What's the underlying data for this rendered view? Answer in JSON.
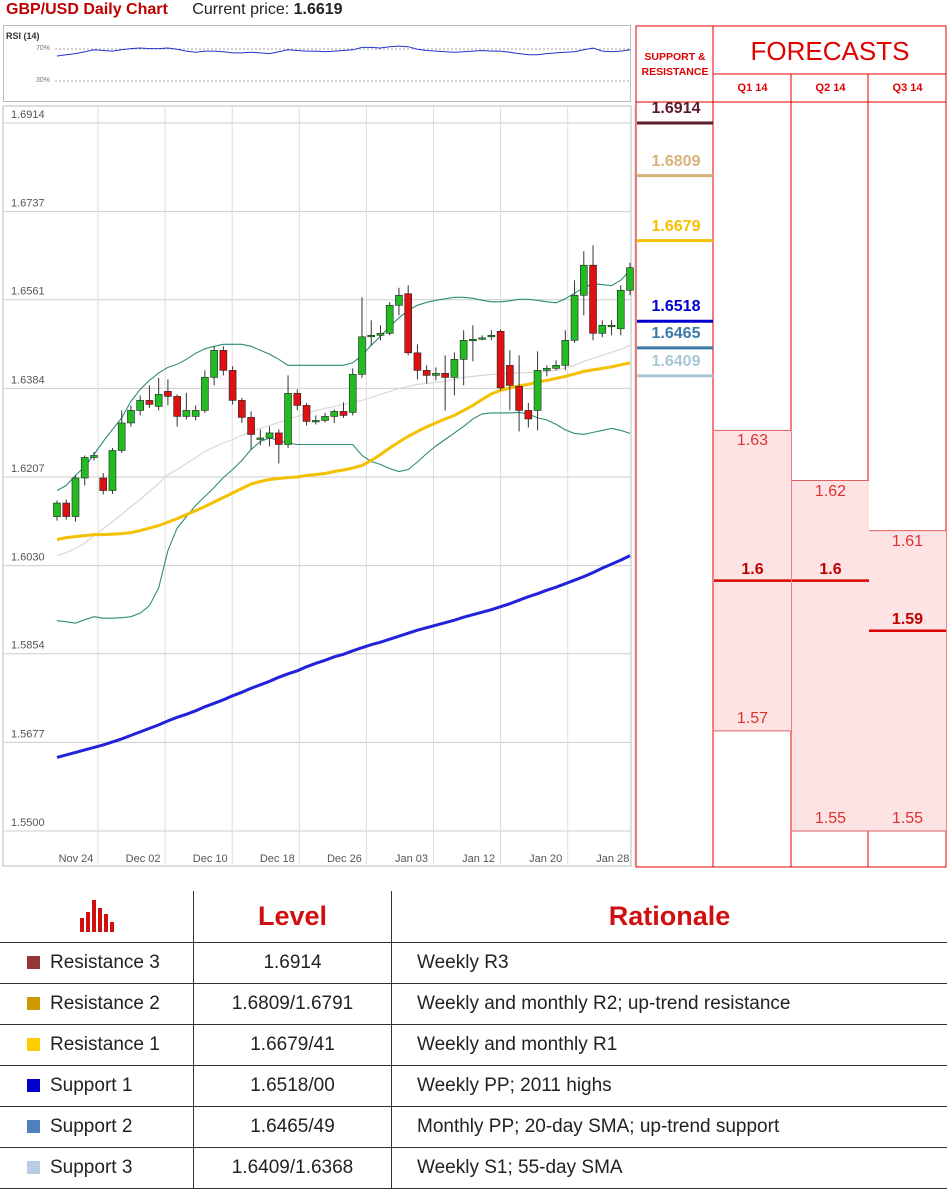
{
  "header": {
    "title": "GBP/USD Daily Chart",
    "price_label": "Current price:",
    "price_value": "1.6619"
  },
  "rsi": {
    "title": "RSI (14)",
    "levels": [
      "70%",
      "30%"
    ]
  },
  "chart_data": {
    "type": "candlestick",
    "title": "GBP/USD Daily Chart",
    "y_ticks": [
      "1.6914",
      "1.6737",
      "1.6561",
      "1.6384",
      "1.6207",
      "1.6030",
      "1.5854",
      "1.5677",
      "1.5500"
    ],
    "ylim": [
      1.55,
      1.6914
    ],
    "x_ticks": [
      "Nov 24",
      "Dec 02",
      "Dec 10",
      "Dec 18",
      "Dec 26",
      "Jan 03",
      "Jan 12",
      "Jan 20",
      "Jan 28"
    ],
    "grid": true,
    "candles": [
      [
        1.6118,
        1.6145,
        1.615,
        1.611
      ],
      [
        1.6145,
        1.6118,
        1.6152,
        1.6112
      ],
      [
        1.6118,
        1.6195,
        1.62,
        1.6108
      ],
      [
        1.6195,
        1.6236,
        1.624,
        1.618
      ],
      [
        1.6236,
        1.624,
        1.6247,
        1.623
      ],
      [
        1.6195,
        1.617,
        1.6205,
        1.6162
      ],
      [
        1.617,
        1.625,
        1.6255,
        1.6163
      ],
      [
        1.625,
        1.6305,
        1.633,
        1.6245
      ],
      [
        1.6305,
        1.633,
        1.634,
        1.6298
      ],
      [
        1.633,
        1.635,
        1.636,
        1.632
      ],
      [
        1.635,
        1.6342,
        1.638,
        1.6335
      ],
      [
        1.6338,
        1.6362,
        1.6395,
        1.633
      ],
      [
        1.6368,
        1.6358,
        1.6392,
        1.634
      ],
      [
        1.6358,
        1.6318,
        1.6362,
        1.6298
      ],
      [
        1.6318,
        1.633,
        1.6365,
        1.6312
      ],
      [
        1.6318,
        1.633,
        1.634,
        1.631
      ],
      [
        1.633,
        1.6396,
        1.641,
        1.6325
      ],
      [
        1.6396,
        1.645,
        1.6458,
        1.638
      ],
      [
        1.645,
        1.641,
        1.6458,
        1.64
      ],
      [
        1.641,
        1.635,
        1.6418,
        1.6342
      ],
      [
        1.635,
        1.6316,
        1.6355,
        1.6305
      ],
      [
        1.6316,
        1.6282,
        1.6328,
        1.6252
      ],
      [
        1.6275,
        1.6275,
        1.6292,
        1.626
      ],
      [
        1.6275,
        1.6285,
        1.6298,
        1.6258
      ],
      [
        1.6285,
        1.6262,
        1.6292,
        1.6224
      ],
      [
        1.6262,
        1.6364,
        1.64,
        1.6255
      ],
      [
        1.6364,
        1.634,
        1.6372,
        1.633
      ],
      [
        1.634,
        1.6308,
        1.6345,
        1.63
      ],
      [
        1.631,
        1.631,
        1.632,
        1.6302
      ],
      [
        1.631,
        1.6318,
        1.6325,
        1.6306
      ],
      [
        1.6318,
        1.6328,
        1.6332,
        1.6305
      ],
      [
        1.6328,
        1.632,
        1.6346,
        1.6315
      ],
      [
        1.6326,
        1.6402,
        1.6414,
        1.632
      ],
      [
        1.6402,
        1.6477,
        1.6556,
        1.6395
      ],
      [
        1.6477,
        1.648,
        1.651,
        1.646
      ],
      [
        1.648,
        1.6484,
        1.65,
        1.647
      ],
      [
        1.6484,
        1.654,
        1.6546,
        1.648
      ],
      [
        1.654,
        1.656,
        1.6575,
        1.652
      ],
      [
        1.6563,
        1.6445,
        1.658,
        1.644
      ],
      [
        1.6445,
        1.641,
        1.6462,
        1.6392
      ],
      [
        1.641,
        1.64,
        1.642,
        1.6384
      ],
      [
        1.64,
        1.6404,
        1.6416,
        1.639
      ],
      [
        1.6404,
        1.6396,
        1.644,
        1.633
      ],
      [
        1.6396,
        1.6432,
        1.6446,
        1.636
      ],
      [
        1.6432,
        1.647,
        1.649,
        1.638
      ],
      [
        1.647,
        1.6472,
        1.65,
        1.6428
      ],
      [
        1.6472,
        1.6475,
        1.648,
        1.647
      ],
      [
        1.6478,
        1.648,
        1.649,
        1.647
      ],
      [
        1.6488,
        1.6375,
        1.6492,
        1.637
      ],
      [
        1.642,
        1.638,
        1.645,
        1.633
      ],
      [
        1.6378,
        1.633,
        1.644,
        1.6288
      ],
      [
        1.633,
        1.6313,
        1.6345,
        1.6296
      ],
      [
        1.633,
        1.641,
        1.6448,
        1.629
      ],
      [
        1.641,
        1.6414,
        1.642,
        1.6398
      ],
      [
        1.6414,
        1.642,
        1.643,
        1.641
      ],
      [
        1.642,
        1.647,
        1.649,
        1.641
      ],
      [
        1.647,
        1.656,
        1.659,
        1.6465
      ],
      [
        1.656,
        1.662,
        1.6648,
        1.652
      ],
      [
        1.662,
        1.6484,
        1.666,
        1.647
      ],
      [
        1.6484,
        1.65,
        1.651,
        1.6476
      ],
      [
        1.65,
        1.65,
        1.651,
        1.648
      ],
      [
        1.6493,
        1.657,
        1.658,
        1.648
      ],
      [
        1.657,
        1.6615,
        1.6625,
        1.656
      ]
    ],
    "ma_slow": [
      1.5637,
      1.5642,
      1.5647,
      1.5652,
      1.5657,
      1.5662,
      1.5668,
      1.5674,
      1.5681,
      1.5688,
      1.5695,
      1.5702,
      1.571,
      1.5717,
      1.5723,
      1.573,
      1.5738,
      1.5745,
      1.5752,
      1.576,
      1.5767,
      1.5775,
      1.5782,
      1.5789,
      1.5797,
      1.5804,
      1.581,
      1.5818,
      1.5825,
      1.5831,
      1.5838,
      1.5843,
      1.585,
      1.5856,
      1.5862,
      1.5867,
      1.5873,
      1.5879,
      1.5885,
      1.5891,
      1.5896,
      1.5901,
      1.5906,
      1.5911,
      1.5917,
      1.5922,
      1.5927,
      1.5932,
      1.5938,
      1.5944,
      1.5951,
      1.5958,
      1.5964,
      1.5971,
      1.5977,
      1.5984,
      1.5991,
      1.5998,
      1.6006,
      1.6015,
      1.6023,
      1.6031,
      1.604
    ],
    "ma_mid": [
      1.6072,
      1.6076,
      1.6078,
      1.608,
      1.6082,
      1.6082,
      1.6083,
      1.6084,
      1.6086,
      1.609,
      1.6095,
      1.61,
      1.6107,
      1.6114,
      1.6122,
      1.613,
      1.6138,
      1.6147,
      1.6156,
      1.6165,
      1.6174,
      1.6183,
      1.6188,
      1.6192,
      1.6194,
      1.6196,
      1.6197,
      1.62,
      1.6202,
      1.6204,
      1.6208,
      1.6211,
      1.6215,
      1.622,
      1.623,
      1.6242,
      1.6255,
      1.6267,
      1.6278,
      1.6288,
      1.6297,
      1.6305,
      1.6313,
      1.632,
      1.633,
      1.634,
      1.6352,
      1.6363,
      1.637,
      1.6375,
      1.6379,
      1.6382,
      1.6387,
      1.639,
      1.6394,
      1.6398,
      1.6403,
      1.6408,
      1.6411,
      1.6414,
      1.6417,
      1.6421,
      1.6425
    ],
    "bb_upper": [
      1.617,
      1.618,
      1.62,
      1.6218,
      1.6242,
      1.6268,
      1.6292,
      1.6315,
      1.6348,
      1.6372,
      1.639,
      1.6405,
      1.6416,
      1.6422,
      1.6432,
      1.6444,
      1.6453,
      1.6458,
      1.6462,
      1.6462,
      1.6462,
      1.6458,
      1.645,
      1.6442,
      1.6432,
      1.642,
      1.642,
      1.642,
      1.642,
      1.642,
      1.642,
      1.642,
      1.6425,
      1.644,
      1.646,
      1.6478,
      1.6498,
      1.6515,
      1.653,
      1.654,
      1.6546,
      1.655,
      1.6553,
      1.6556,
      1.6556,
      1.6554,
      1.655,
      1.6547,
      1.6547,
      1.6549,
      1.6552,
      1.6552,
      1.655,
      1.6547,
      1.6545,
      1.6553,
      1.6564,
      1.6575,
      1.6583,
      1.6581,
      1.6579,
      1.659,
      1.661
    ],
    "bb_lower": [
      1.591,
      1.5908,
      1.5905,
      1.5912,
      1.5918,
      1.5915,
      1.5915,
      1.5916,
      1.5918,
      1.5925,
      1.594,
      1.5976,
      1.605,
      1.6095,
      1.6118,
      1.614,
      1.6158,
      1.6176,
      1.6196,
      1.6212,
      1.623,
      1.6252,
      1.6268,
      1.6275,
      1.627,
      1.6265,
      1.6262,
      1.6262,
      1.6262,
      1.6262,
      1.6262,
      1.6262,
      1.6262,
      1.624,
      1.6228,
      1.6222,
      1.6214,
      1.6208,
      1.6212,
      1.6227,
      1.6244,
      1.6259,
      1.6272,
      1.6285,
      1.6298,
      1.6313,
      1.6323,
      1.6325,
      1.6325,
      1.6325,
      1.6326,
      1.6323,
      1.6315,
      1.6311,
      1.6302,
      1.6291,
      1.6284,
      1.6282,
      1.6286,
      1.629,
      1.6294,
      1.629,
      1.6284
    ],
    "bb_mid": [
      1.604,
      1.6046,
      1.6054,
      1.6065,
      1.608,
      1.6094,
      1.6108,
      1.6122,
      1.6138,
      1.6152,
      1.6168,
      1.6184,
      1.6202,
      1.6212,
      1.6224,
      1.6236,
      1.6248,
      1.6257,
      1.6265,
      1.6272,
      1.628,
      1.6288,
      1.6294,
      1.63,
      1.6306,
      1.6312,
      1.6318,
      1.6324,
      1.633,
      1.6334,
      1.6338,
      1.6342,
      1.6346,
      1.635,
      1.6356,
      1.6362,
      1.6368,
      1.6374,
      1.6378,
      1.6382,
      1.6384,
      1.6386,
      1.6388,
      1.6392,
      1.6396,
      1.6398,
      1.64,
      1.6402,
      1.6403,
      1.6404,
      1.6405,
      1.6406,
      1.6407,
      1.6408,
      1.641,
      1.6415,
      1.642,
      1.6428,
      1.6434,
      1.644,
      1.6446,
      1.6452,
      1.646
    ],
    "rsi_values": [
      58,
      60,
      62,
      65,
      68,
      67,
      66,
      68,
      70,
      71,
      70,
      70,
      71,
      69,
      66,
      64,
      66,
      66,
      65,
      63,
      63,
      64,
      63,
      62,
      65,
      68,
      67,
      66,
      66,
      65,
      66,
      67,
      68,
      72,
      72,
      71,
      73,
      74,
      73,
      69,
      67,
      66,
      65,
      64,
      65,
      66,
      67,
      66,
      66,
      64,
      62,
      60,
      60,
      62,
      63,
      64,
      65,
      68,
      71,
      66,
      65,
      66,
      68
    ],
    "rsi_range": [
      0,
      100
    ],
    "support_resistance": [
      {
        "label": "1.6914",
        "value": 1.6914,
        "color": "#5b1a2a"
      },
      {
        "label": "1.6809",
        "value": 1.6809,
        "color": "#d8b27a"
      },
      {
        "label": "1.6679",
        "value": 1.6679,
        "color": "#f5c000"
      },
      {
        "label": "1.6518",
        "value": 1.6518,
        "color": "#0000cc"
      },
      {
        "label": "1.6465",
        "value": 1.6465,
        "color": "#3a7aa8"
      },
      {
        "label": "1.6409",
        "value": 1.6409,
        "color": "#a8c8d8"
      }
    ],
    "forecasts": {
      "title": "FORECASTS",
      "sr_title": "SUPPORT & RESISTANCE",
      "quarters": [
        {
          "label": "Q1 14",
          "high": 1.63,
          "mid": 1.6,
          "low": 1.57,
          "high_label": "1.63",
          "mid_label": "1.6",
          "low_label": "1.57"
        },
        {
          "label": "Q2 14",
          "high": 1.62,
          "mid": 1.6,
          "low": 1.55,
          "high_label": "1.62",
          "mid_label": "1.6",
          "low_label": "1.55"
        },
        {
          "label": "Q3 14",
          "high": 1.61,
          "mid": 1.59,
          "low": 1.55,
          "high_label": "1.61",
          "mid_label": "1.59",
          "low_label": "1.55"
        }
      ]
    }
  },
  "levels_table": {
    "headers": [
      "Level",
      "Rationale"
    ],
    "rows": [
      {
        "name": "Resistance 3",
        "level": "1.6914",
        "rationale": "Weekly R3",
        "color": "#943634"
      },
      {
        "name": "Resistance 2",
        "level": "1.6809/1.6791",
        "rationale": "Weekly and monthly R2; up-trend resistance",
        "color": "#cc9900"
      },
      {
        "name": "Resistance 1",
        "level": "1.6679/41",
        "rationale": "Weekly and monthly R1",
        "color": "#ffcc00"
      },
      {
        "name": "Support 1",
        "level": "1.6518/00",
        "rationale": "Weekly PP; 2011 highs",
        "color": "#0000cc"
      },
      {
        "name": "Support 2",
        "level": "1.6465/49",
        "rationale": "Monthly PP; 20-day SMA; up-trend support",
        "color": "#4f81bd"
      },
      {
        "name": "Support 3",
        "level": "1.6409/1.6368",
        "rationale": "Weekly S1; 55-day SMA",
        "color": "#b8cce4"
      }
    ]
  },
  "colors": {
    "accent_red": "#e00000",
    "candle_up": "#22bb22",
    "candle_down": "#dd1111",
    "ma_slow": "#2222dd",
    "ma_mid": "#f5c000",
    "bollinger": "#2e8b7a"
  }
}
